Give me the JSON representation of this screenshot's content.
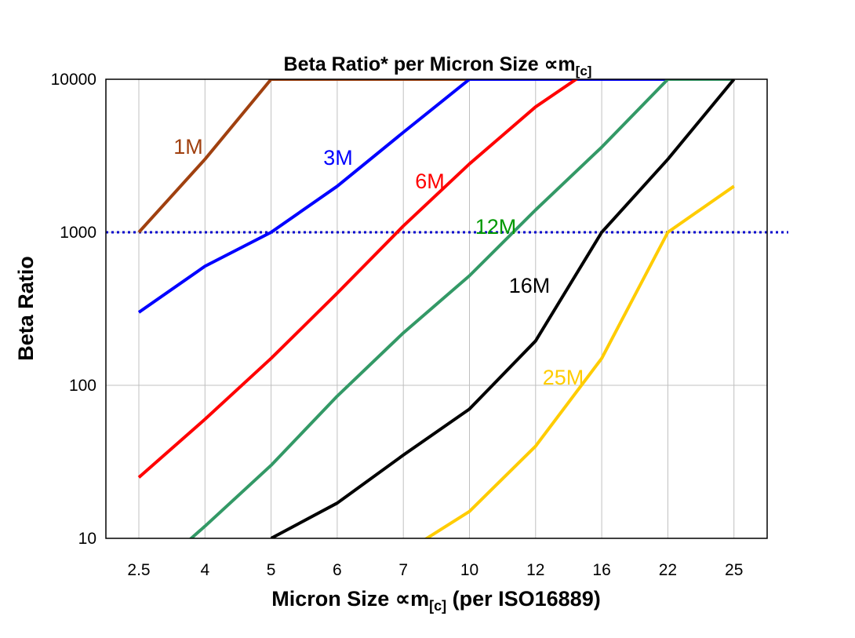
{
  "chart_data": {
    "type": "line",
    "title": "Beta Ratio* per Micron Size ∝m",
    "title_subscript": "[c]",
    "xlabel": "Micron Size ∝m",
    "xlabel_subscript": "[c]",
    "xlabel_suffix": " (per ISO16889)",
    "ylabel": "Beta Ratio",
    "categories": [
      "2.5",
      "4",
      "5",
      "6",
      "7",
      "10",
      "12",
      "16",
      "22",
      "25"
    ],
    "y_scale": "log",
    "ylim": [
      10,
      10000
    ],
    "y_ticks": [
      10,
      100,
      1000,
      10000
    ],
    "grid": {
      "vertical": true,
      "horizontal": true
    },
    "reference_line": {
      "y": 1000,
      "style": "dotted",
      "color": "#0000CC"
    },
    "series": [
      {
        "name": "1M",
        "color": "#A0400F",
        "values": [
          1000,
          3000,
          10000,
          10000,
          10000,
          10000,
          null,
          null,
          null,
          null
        ]
      },
      {
        "name": "3M",
        "color": "#0000FF",
        "values": [
          300,
          600,
          1000,
          2000,
          4500,
          10000,
          10000,
          10000,
          10000,
          10000
        ]
      },
      {
        "name": "6M",
        "color": "#FF0000",
        "values": [
          25,
          60,
          150,
          400,
          1100,
          2800,
          6600,
          13000,
          null,
          null
        ]
      },
      {
        "name": "12M",
        "color": "#339966",
        "values": [
          5,
          12,
          30,
          85,
          220,
          520,
          1400,
          3600,
          10000,
          10000
        ]
      },
      {
        "name": "16M",
        "color": "#000000",
        "values": [
          null,
          null,
          10,
          17,
          35,
          70,
          195,
          1000,
          3000,
          10000
        ]
      },
      {
        "name": "25M",
        "color": "#FFCC00",
        "values": [
          null,
          null,
          null,
          null,
          8,
          15,
          40,
          150,
          1000,
          2000
        ]
      }
    ]
  }
}
